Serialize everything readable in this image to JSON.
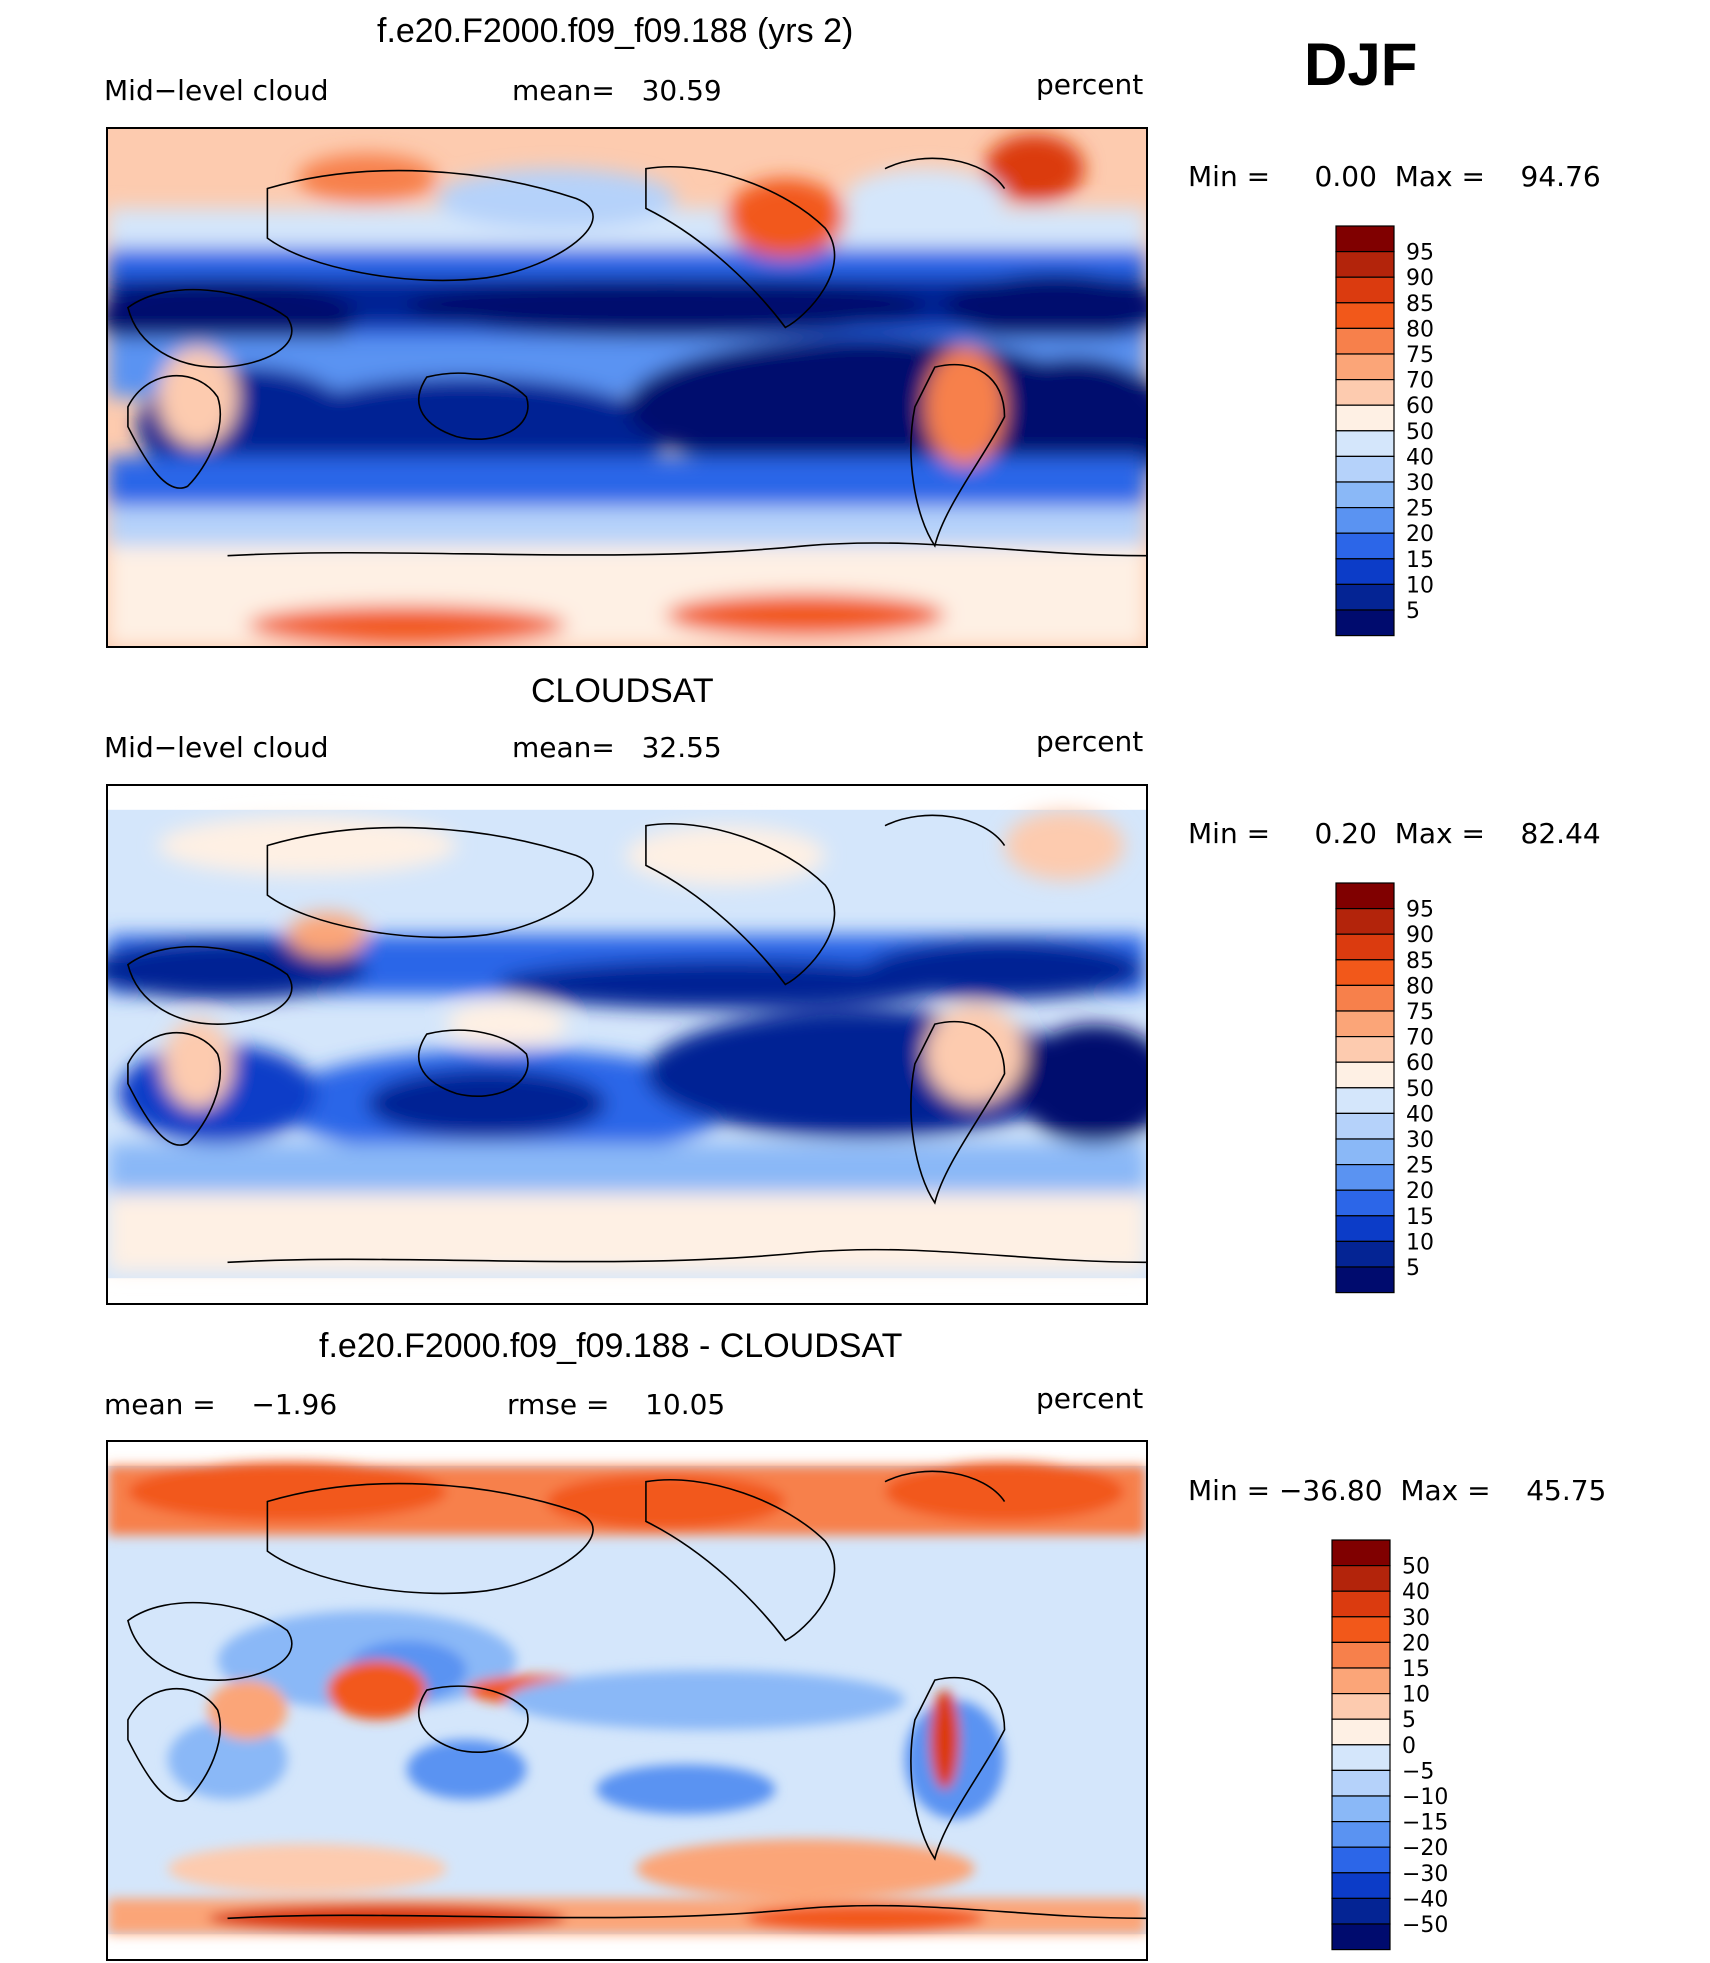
{
  "season": "DJF",
  "panels": [
    {
      "title": "f.e20.F2000.f09_f09.188 (yrs 2)",
      "left_label": "Mid−level cloud",
      "center_label": "mean=   30.59",
      "units": "percent",
      "minmax": "Min =     0.00  Max =    94.76",
      "colorbar": {
        "levels": [
          "95",
          "90",
          "85",
          "80",
          "75",
          "70",
          "60",
          "50",
          "40",
          "30",
          "25",
          "20",
          "15",
          "10",
          "5"
        ],
        "colors": [
          "#800000",
          "#b3240b",
          "#db3b0f",
          "#f2581a",
          "#f7804b",
          "#fba578",
          "#fdcbaf",
          "#fef0e4",
          "#d4e6fb",
          "#b5d2fa",
          "#8ab8f7",
          "#5a93f2",
          "#2c66e8",
          "#0c3cc8",
          "#042494",
          "#000b6e"
        ]
      }
    },
    {
      "title": "CLOUDSAT",
      "left_label": "Mid−level cloud",
      "center_label": "mean=   32.55",
      "units": "percent",
      "minmax": "Min =     0.20  Max =    82.44",
      "colorbar": {
        "levels": [
          "95",
          "90",
          "85",
          "80",
          "75",
          "70",
          "60",
          "50",
          "40",
          "30",
          "25",
          "20",
          "15",
          "10",
          "5"
        ],
        "colors": [
          "#800000",
          "#b3240b",
          "#db3b0f",
          "#f2581a",
          "#f7804b",
          "#fba578",
          "#fdcbaf",
          "#fef0e4",
          "#d4e6fb",
          "#b5d2fa",
          "#8ab8f7",
          "#5a93f2",
          "#2c66e8",
          "#0c3cc8",
          "#042494",
          "#000b6e"
        ]
      }
    },
    {
      "title": "f.e20.F2000.f09_f09.188 - CLOUDSAT",
      "left_label": "mean =    −1.96",
      "center_label": "rmse =    10.05",
      "units": "percent",
      "minmax": "Min = −36.80  Max =    45.75",
      "colorbar": {
        "levels": [
          "50",
          "40",
          "30",
          "20",
          "15",
          "10",
          "5",
          "0",
          "−5",
          "−10",
          "−15",
          "−20",
          "−30",
          "−40",
          "−50"
        ],
        "colors": [
          "#800000",
          "#b3240b",
          "#db3b0f",
          "#f2581a",
          "#f7804b",
          "#fba578",
          "#fdcbaf",
          "#fef0e4",
          "#d4e6fb",
          "#b5d2fa",
          "#8ab8f7",
          "#5a93f2",
          "#2c66e8",
          "#0c3cc8",
          "#042494",
          "#000b6e"
        ]
      }
    }
  ],
  "chart_data": [
    {
      "type": "heatmap",
      "title": "f.e20.F2000.f09_f09.188 (yrs 2)",
      "variable": "Mid−level cloud",
      "units": "percent",
      "mean": 30.59,
      "min": 0.0,
      "max": 94.76,
      "contour_levels": [
        5,
        10,
        15,
        20,
        25,
        30,
        40,
        50,
        60,
        70,
        75,
        80,
        85,
        90,
        95
      ]
    },
    {
      "type": "heatmap",
      "title": "CLOUDSAT",
      "variable": "Mid−level cloud",
      "units": "percent",
      "mean": 32.55,
      "min": 0.2,
      "max": 82.44,
      "contour_levels": [
        5,
        10,
        15,
        20,
        25,
        30,
        40,
        50,
        60,
        70,
        75,
        80,
        85,
        90,
        95
      ]
    },
    {
      "type": "heatmap",
      "title": "f.e20.F2000.f09_f09.188 - CLOUDSAT",
      "units": "percent",
      "mean": -1.96,
      "rmse": 10.05,
      "min": -36.8,
      "max": 45.75,
      "contour_levels": [
        -50,
        -40,
        -30,
        -20,
        -15,
        -10,
        -5,
        0,
        5,
        10,
        15,
        20,
        30,
        40,
        50
      ]
    }
  ]
}
